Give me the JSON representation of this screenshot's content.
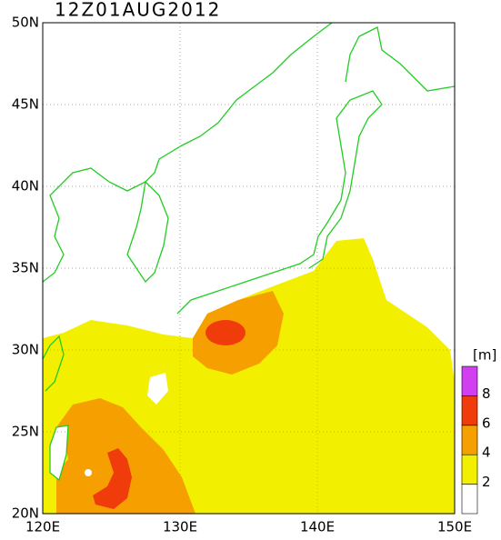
{
  "title": "12Z01AUG2012",
  "grid": true,
  "lon_ticks": [
    {
      "value": 120,
      "label": "120E"
    },
    {
      "value": 130,
      "label": "130E"
    },
    {
      "value": 140,
      "label": "140E"
    },
    {
      "value": 150,
      "label": "150E"
    }
  ],
  "lat_ticks": [
    {
      "value": 20,
      "label": "20N"
    },
    {
      "value": 25,
      "label": "25N"
    },
    {
      "value": 30,
      "label": "30N"
    },
    {
      "value": 35,
      "label": "35N"
    },
    {
      "value": 40,
      "label": "40N"
    },
    {
      "value": 45,
      "label": "45N"
    },
    {
      "value": 50,
      "label": "50N"
    }
  ],
  "colorbar": {
    "unit": "[m]",
    "ticks": [
      2,
      4,
      6,
      8
    ],
    "colors": [
      "#ffffff",
      "#f2f000",
      "#f5a000",
      "#f03c0a",
      "#d040f0"
    ]
  }
}
